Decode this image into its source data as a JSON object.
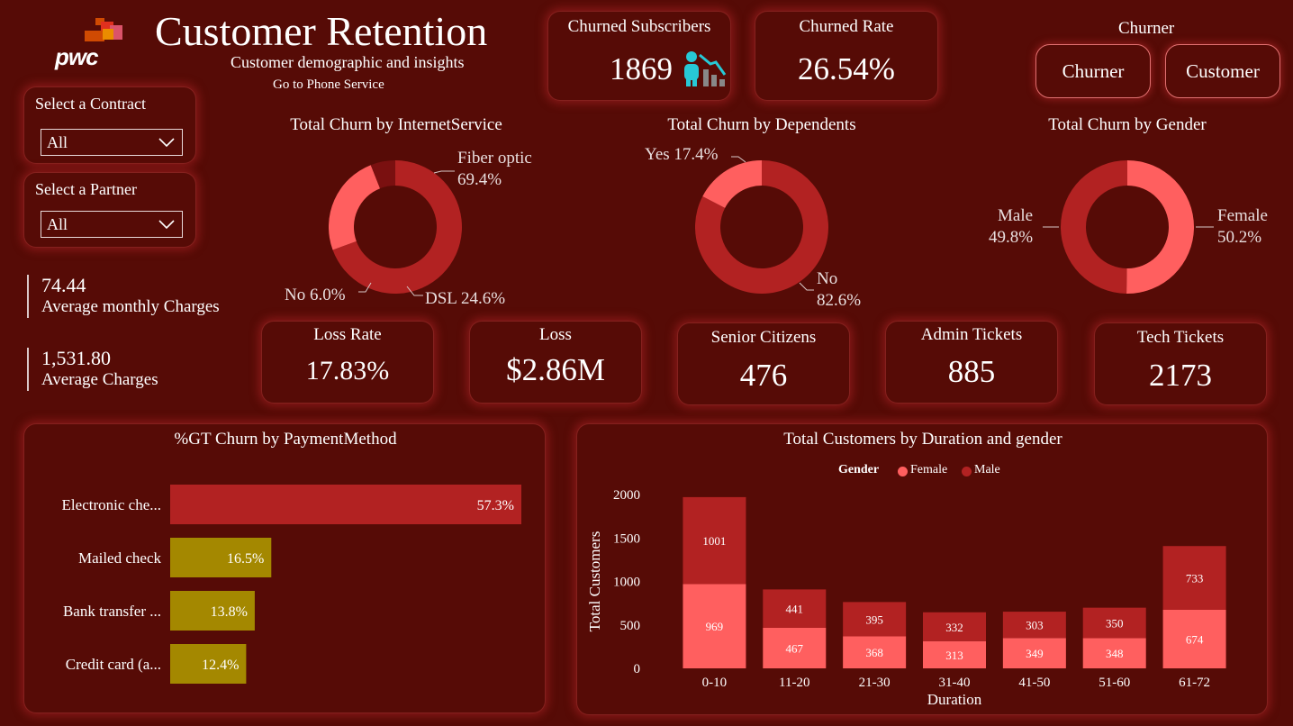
{
  "header": {
    "logo_text": "pwc",
    "title": "Customer Retention",
    "subtitle": "Customer demographic and insights",
    "nav_link": "Go to Phone Service"
  },
  "filters": {
    "contract": {
      "label": "Select a Contract",
      "value": "All"
    },
    "partner": {
      "label": "Select a Partner",
      "value": "All"
    }
  },
  "metrics": [
    {
      "value": "74.44",
      "label": "Average monthly Charges"
    },
    {
      "value": "1,531.80",
      "label": "Average Charges"
    }
  ],
  "top_kpis": {
    "churned_subscribers": {
      "title": "Churned Subscribers",
      "value": "1869"
    },
    "churned_rate": {
      "title": "Churned Rate",
      "value": "26.54%"
    }
  },
  "churner_toggle": {
    "title": "Churner",
    "options": [
      "Churner",
      "Customer"
    ]
  },
  "kpis": [
    {
      "title": "Loss Rate",
      "value": "17.83%"
    },
    {
      "title": "Loss",
      "value": "$2.86M"
    },
    {
      "title": "Senior Citizens",
      "value": "476"
    },
    {
      "title": "Admin Tickets",
      "value": "885"
    },
    {
      "title": "Tech Tickets",
      "value": "2173"
    }
  ],
  "colors": {
    "background": "#560b06",
    "dark_red": "#b22222",
    "salmon": "#ff5f5f",
    "darkest": "#7a1010",
    "olive": "#a48800"
  },
  "chart_data": [
    {
      "type": "pie",
      "title": "Total Churn by InternetService",
      "slices": [
        {
          "label": "Fiber optic",
          "pct_label": "69.4%",
          "value": 69.4,
          "color": "#b22222"
        },
        {
          "label": "DSL",
          "pct_label": "24.6%",
          "value": 24.6,
          "color": "#ff5f5f"
        },
        {
          "label": "No",
          "pct_label": "6.0%",
          "value": 6.0,
          "color": "#7a1010"
        }
      ]
    },
    {
      "type": "pie",
      "title": "Total Churn by Dependents",
      "slices": [
        {
          "label": "No",
          "pct_label": "82.6%",
          "value": 82.6,
          "color": "#b22222"
        },
        {
          "label": "Yes",
          "pct_label": "17.4%",
          "value": 17.4,
          "color": "#ff5f5f"
        }
      ]
    },
    {
      "type": "pie",
      "title": "Total Churn by Gender",
      "slices": [
        {
          "label": "Female",
          "pct_label": "50.2%",
          "value": 50.2,
          "color": "#ff5f5f"
        },
        {
          "label": "Male",
          "pct_label": "49.8%",
          "value": 49.8,
          "color": "#b22222"
        }
      ]
    },
    {
      "type": "bar",
      "orientation": "horizontal",
      "title": "%GT Churn by PaymentMethod",
      "categories": [
        "Electronic che...",
        "Mailed check",
        "Bank transfer ...",
        "Credit card (a..."
      ],
      "values": [
        57.3,
        16.5,
        13.8,
        12.4
      ],
      "value_labels": [
        "57.3%",
        "16.5%",
        "13.8%",
        "12.4%"
      ],
      "colors": [
        "#b22222",
        "#a48800",
        "#a48800",
        "#a48800"
      ],
      "xlim": [
        0,
        57.3
      ]
    },
    {
      "type": "bar",
      "stacked": true,
      "title": "Total Customers by Duration and gender",
      "xlabel": "Duration",
      "ylabel": "Total Customers",
      "legend_title": "Gender",
      "categories": [
        "0-10",
        "11-20",
        "21-30",
        "31-40",
        "41-50",
        "51-60",
        "61-72"
      ],
      "series": [
        {
          "name": "Female",
          "color": "#ff5f5f",
          "values": [
            969,
            467,
            368,
            313,
            349,
            348,
            674
          ]
        },
        {
          "name": "Male",
          "color": "#b22222",
          "values": [
            1001,
            441,
            395,
            332,
            303,
            350,
            733
          ]
        }
      ],
      "yticks": [
        0,
        500,
        1000,
        1500,
        2000
      ],
      "ylim": [
        0,
        2000
      ]
    }
  ]
}
